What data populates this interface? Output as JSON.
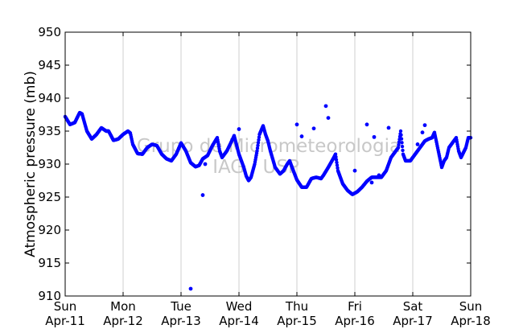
{
  "chart_data": {
    "type": "scatter",
    "ylabel": "Atmospheric pressure (mb)",
    "xlabel": "",
    "title": "",
    "ylim": [
      910,
      950
    ],
    "yticks": [
      910,
      915,
      920,
      925,
      930,
      935,
      940,
      945,
      950
    ],
    "xlim": [
      "2010-04-11 00:00",
      "2010-04-18 00:00"
    ],
    "x_ticks": [
      {
        "day": "Sun",
        "date": "Apr-11"
      },
      {
        "day": "Mon",
        "date": "Apr-12"
      },
      {
        "day": "Tue",
        "date": "Apr-13"
      },
      {
        "day": "Wed",
        "date": "Apr-14"
      },
      {
        "day": "Thu",
        "date": "Apr-15"
      },
      {
        "day": "Fri",
        "date": "Apr-16"
      },
      {
        "day": "Sat",
        "date": "Apr-17"
      },
      {
        "day": "Sun",
        "date": "Apr-18"
      }
    ],
    "grid": "vertical",
    "watermark": [
      "Grupo de Micrometeorologia",
      "IAG / USP"
    ],
    "series": [
      {
        "color": "#0000ff",
        "marker": "dot",
        "points": [
          [
            "2010-04-11 00:00",
            937.2
          ],
          [
            "2010-04-11 02:00",
            936.0
          ],
          [
            "2010-04-11 04:00",
            936.3
          ],
          [
            "2010-04-11 06:00",
            937.8
          ],
          [
            "2010-04-11 07:00",
            937.6
          ],
          [
            "2010-04-11 09:00",
            935.0
          ],
          [
            "2010-04-11 11:00",
            933.8
          ],
          [
            "2010-04-11 13:00",
            934.5
          ],
          [
            "2010-04-11 15:00",
            935.5
          ],
          [
            "2010-04-11 17:00",
            935.0
          ],
          [
            "2010-04-11 18:00",
            935.0
          ],
          [
            "2010-04-11 20:00",
            933.6
          ],
          [
            "2010-04-11 22:00",
            933.8
          ],
          [
            "2010-04-12 00:00",
            934.5
          ],
          [
            "2010-04-12 02:00",
            935.0
          ],
          [
            "2010-04-12 03:00",
            934.7
          ],
          [
            "2010-04-12 04:00",
            933.0
          ],
          [
            "2010-04-12 06:00",
            931.6
          ],
          [
            "2010-04-12 08:00",
            931.5
          ],
          [
            "2010-04-12 10:00",
            932.5
          ],
          [
            "2010-04-12 12:00",
            933.0
          ],
          [
            "2010-04-12 14:00",
            932.8
          ],
          [
            "2010-04-12 16:00",
            931.5
          ],
          [
            "2010-04-12 18:00",
            930.8
          ],
          [
            "2010-04-12 20:00",
            930.5
          ],
          [
            "2010-04-12 22:00",
            931.5
          ],
          [
            "2010-04-13 00:00",
            933.2
          ],
          [
            "2010-04-13 02:00",
            932.0
          ],
          [
            "2010-04-13 04:00",
            930.2
          ],
          [
            "2010-04-13 06:00",
            929.6
          ],
          [
            "2010-04-13 07:30",
            929.8
          ],
          [
            "2010-04-13 09:00",
            930.8
          ],
          [
            "2010-04-13 11:00",
            931.3
          ],
          [
            "2010-04-13 13:00",
            932.8
          ],
          [
            "2010-04-13 15:00",
            934.0
          ],
          [
            "2010-04-13 16:00",
            932.0
          ],
          [
            "2010-04-13 17:00",
            931.0
          ],
          [
            "2010-04-13 19:00",
            932.0
          ],
          [
            "2010-04-13 21:00",
            933.5
          ],
          [
            "2010-04-13 22:00",
            934.3
          ],
          [
            "2010-04-14 00:00",
            931.5
          ],
          [
            "2010-04-14 02:00",
            929.5
          ],
          [
            "2010-04-14 03:00",
            928.2
          ],
          [
            "2010-04-14 04:00",
            927.5
          ],
          [
            "2010-04-14 05:00",
            928.0
          ],
          [
            "2010-04-14 06:30",
            930.0
          ],
          [
            "2010-04-14 07:30",
            932.0
          ],
          [
            "2010-04-14 08:30",
            934.5
          ],
          [
            "2010-04-14 10:00",
            935.8
          ],
          [
            "2010-04-14 11:00",
            934.5
          ],
          [
            "2010-04-14 12:00",
            933.5
          ],
          [
            "2010-04-14 13:00",
            932.0
          ],
          [
            "2010-04-14 15:00",
            929.5
          ],
          [
            "2010-04-14 17:00",
            928.5
          ],
          [
            "2010-04-14 18:30",
            929.0
          ],
          [
            "2010-04-14 20:00",
            930.0
          ],
          [
            "2010-04-14 21:00",
            930.5
          ],
          [
            "2010-04-14 22:00",
            929.5
          ],
          [
            "2010-04-15 00:00",
            927.6
          ],
          [
            "2010-04-15 02:00",
            926.5
          ],
          [
            "2010-04-15 04:00",
            926.5
          ],
          [
            "2010-04-15 06:00",
            927.8
          ],
          [
            "2010-04-15 08:00",
            928.0
          ],
          [
            "2010-04-15 10:00",
            927.8
          ],
          [
            "2010-04-15 11:00",
            928.3
          ],
          [
            "2010-04-15 13:00",
            929.5
          ],
          [
            "2010-04-15 15:00",
            930.8
          ],
          [
            "2010-04-15 16:00",
            931.5
          ],
          [
            "2010-04-15 17:00",
            929.0
          ],
          [
            "2010-04-15 19:00",
            927.0
          ],
          [
            "2010-04-15 21:00",
            926.0
          ],
          [
            "2010-04-15 23:00",
            925.4
          ],
          [
            "2010-04-16 01:00",
            925.8
          ],
          [
            "2010-04-16 03:00",
            926.5
          ],
          [
            "2010-04-16 05:00",
            927.4
          ],
          [
            "2010-04-16 07:00",
            928.0
          ],
          [
            "2010-04-16 09:00",
            928.0
          ],
          [
            "2010-04-16 11:00",
            928.0
          ],
          [
            "2010-04-16 13:00",
            929.0
          ],
          [
            "2010-04-16 15:00",
            931.0
          ],
          [
            "2010-04-16 17:00",
            932.0
          ],
          [
            "2010-04-16 18:00",
            932.5
          ],
          [
            "2010-04-16 19:00",
            935.0
          ],
          [
            "2010-04-16 20:00",
            931.5
          ],
          [
            "2010-04-16 21:00",
            930.5
          ],
          [
            "2010-04-16 23:00",
            930.5
          ],
          [
            "2010-04-17 01:00",
            931.5
          ],
          [
            "2010-04-17 03:00",
            932.5
          ],
          [
            "2010-04-17 05:00",
            933.5
          ],
          [
            "2010-04-17 06:30",
            933.8
          ],
          [
            "2010-04-17 08:00",
            934.0
          ],
          [
            "2010-04-17 09:00",
            934.8
          ],
          [
            "2010-04-17 12:00",
            929.5
          ],
          [
            "2010-04-17 13:00",
            930.5
          ],
          [
            "2010-04-17 14:00",
            931.0
          ],
          [
            "2010-04-17 15:00",
            932.5
          ],
          [
            "2010-04-17 16:00",
            933.0
          ],
          [
            "2010-04-17 17:00",
            933.5
          ],
          [
            "2010-04-17 18:00",
            934.0
          ],
          [
            "2010-04-17 19:00",
            932.0
          ],
          [
            "2010-04-17 20:00",
            931.0
          ],
          [
            "2010-04-17 22:00",
            932.5
          ],
          [
            "2010-04-17 23:00",
            934.0
          ],
          [
            "2010-04-18 00:00",
            934.0
          ]
        ],
        "outliers": [
          [
            "2010-04-13 04:00",
            911.1
          ],
          [
            "2010-04-13 09:00",
            925.3
          ],
          [
            "2010-04-13 10:00",
            930.0
          ],
          [
            "2010-04-14 00:00",
            935.3
          ],
          [
            "2010-04-15 00:00",
            936.0
          ],
          [
            "2010-04-15 02:00",
            934.2
          ],
          [
            "2010-04-15 07:00",
            935.4
          ],
          [
            "2010-04-15 12:00",
            938.8
          ],
          [
            "2010-04-15 13:00",
            937.0
          ],
          [
            "2010-04-16 00:00",
            929.0
          ],
          [
            "2010-04-16 05:00",
            936.0
          ],
          [
            "2010-04-16 07:00",
            927.2
          ],
          [
            "2010-04-16 08:00",
            934.1
          ],
          [
            "2010-04-16 14:00",
            935.5
          ],
          [
            "2010-04-16 10:00",
            928.3
          ],
          [
            "2010-04-17 05:00",
            935.9
          ],
          [
            "2010-04-17 04:00",
            934.8
          ],
          [
            "2010-04-17 02:00",
            933.0
          ]
        ]
      }
    ]
  }
}
